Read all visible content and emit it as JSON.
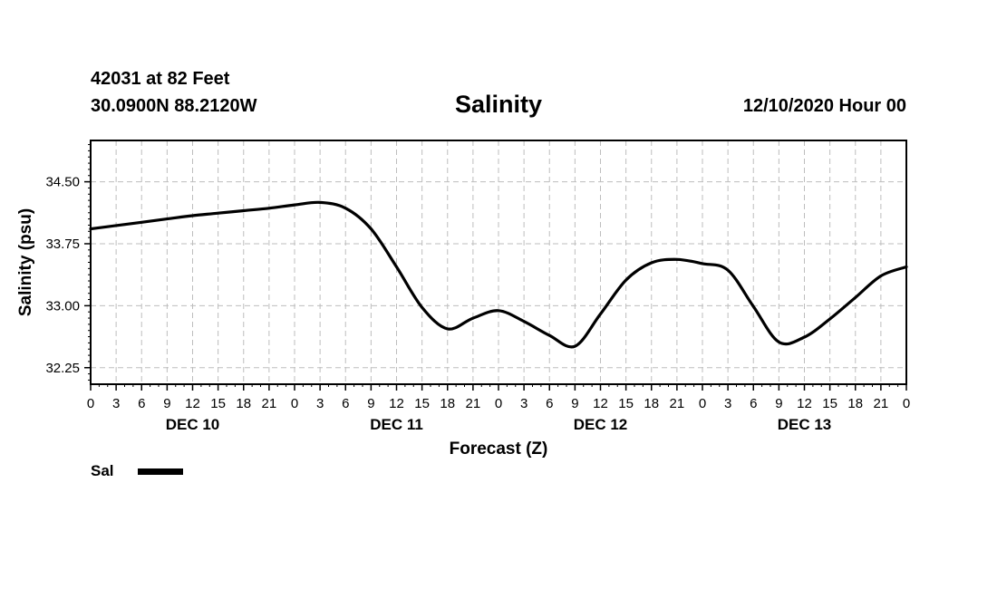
{
  "header": {
    "station": "42031 at 82 Feet",
    "coords": "30.0900N 88.2120W",
    "datetime": "12/10/2020 Hour 00"
  },
  "chart_data": {
    "type": "line",
    "title": "Salinity",
    "xlabel": "Forecast (Z)",
    "ylabel": "Salinity (psu)",
    "x_unit": "forecast hours",
    "xlim": [
      0,
      96
    ],
    "ylim": [
      32.05,
      35.0
    ],
    "yticks": [
      32.25,
      33.0,
      33.75,
      34.5
    ],
    "ytick_labels": [
      "32.25",
      "33.00",
      "33.75",
      "34.50"
    ],
    "xtick_hours": [
      0,
      3,
      6,
      9,
      12,
      15,
      18,
      21,
      24,
      27,
      30,
      33,
      36,
      39,
      42,
      45,
      48,
      51,
      54,
      57,
      60,
      63,
      66,
      69,
      72,
      75,
      78,
      81,
      84,
      87,
      90,
      93,
      96
    ],
    "xtick_labels": [
      "0",
      "3",
      "6",
      "9",
      "12",
      "15",
      "18",
      "21",
      "0",
      "3",
      "6",
      "9",
      "12",
      "15",
      "18",
      "21",
      "0",
      "3",
      "6",
      "9",
      "12",
      "15",
      "18",
      "21",
      "0",
      "3",
      "6",
      "9",
      "12",
      "15",
      "18",
      "21",
      "0"
    ],
    "day_labels": [
      {
        "label": "DEC 10",
        "hour": 12
      },
      {
        "label": "DEC 11",
        "hour": 36
      },
      {
        "label": "DEC 12",
        "hour": 60
      },
      {
        "label": "DEC 13",
        "hour": 84
      }
    ],
    "grid": true,
    "series": [
      {
        "name": "Sal",
        "color": "#000000",
        "x": [
          0,
          3,
          6,
          9,
          12,
          15,
          18,
          21,
          24,
          27,
          30,
          33,
          36,
          39,
          42,
          45,
          48,
          51,
          54,
          57,
          60,
          63,
          66,
          69,
          72,
          75,
          78,
          81,
          84,
          87,
          90,
          93,
          96
        ],
        "y": [
          33.93,
          33.97,
          34.01,
          34.05,
          34.09,
          34.12,
          34.15,
          34.18,
          34.22,
          34.25,
          34.18,
          33.93,
          33.47,
          32.98,
          32.72,
          32.85,
          32.94,
          32.81,
          32.64,
          32.51,
          32.9,
          33.31,
          33.52,
          33.56,
          33.51,
          33.43,
          32.99,
          32.56,
          32.62,
          32.84,
          33.1,
          33.36,
          33.47
        ]
      }
    ]
  },
  "legend": {
    "label": "Sal"
  }
}
